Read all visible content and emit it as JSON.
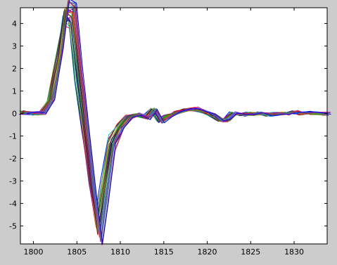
{
  "window": {
    "background": "#cccccc",
    "axes_background": "#ffffff",
    "axis_color": "#000000"
  },
  "chart_data": {
    "type": "line",
    "title": "",
    "xlabel": "",
    "ylabel": "",
    "xlim": [
      1798.5,
      1833.8
    ],
    "ylim": [
      -5.8,
      4.7
    ],
    "xticks": [
      1800,
      1805,
      1810,
      1815,
      1820,
      1825,
      1830
    ],
    "yticks": [
      -5,
      -4,
      -3,
      -2,
      -1,
      0,
      1,
      2,
      3,
      4
    ],
    "grid": false,
    "legend": "none",
    "x": [
      1798.8,
      1800,
      1801,
      1802,
      1803,
      1803.7,
      1804.5,
      1805.2,
      1806,
      1806.8,
      1807.5,
      1808.2,
      1809,
      1810,
      1811,
      1812,
      1813,
      1813.8,
      1814.6,
      1815.5,
      1816.5,
      1817.5,
      1818.5,
      1819.5,
      1820.5,
      1821.5,
      1822.2,
      1823,
      1824,
      1825,
      1826,
      1827,
      1828,
      1829,
      1830,
      1831,
      1832,
      1833.8
    ],
    "series_count": 25,
    "colors": [
      "#0000ff",
      "#008000",
      "#ff0000",
      "#00bfbf",
      "#bf00bf",
      "#bfbf00",
      "#404040",
      "#0000aa",
      "#00aa00",
      "#aa0000",
      "#008b8b",
      "#8b008b",
      "#808000",
      "#000080",
      "#ff6600",
      "#228b22",
      "#dc143c",
      "#1e90ff",
      "#9932cc",
      "#2e8b57",
      "#b22222",
      "#4169e1",
      "#6b8e23",
      "#c71585",
      "#0000ff"
    ],
    "base_profile": [
      0.05,
      0.0,
      0.02,
      0.6,
      2.6,
      4.5,
      4.4,
      1.8,
      -0.8,
      -3.3,
      -5.3,
      -3.4,
      -1.3,
      -0.6,
      -0.15,
      -0.05,
      -0.2,
      0.15,
      -0.35,
      -0.15,
      0.05,
      0.15,
      0.2,
      0.1,
      -0.05,
      -0.3,
      -0.3,
      0.0,
      -0.05,
      -0.02,
      0.0,
      -0.05,
      -0.02,
      0.0,
      0.05,
      0.0,
      0.02,
      -0.02
    ]
  }
}
